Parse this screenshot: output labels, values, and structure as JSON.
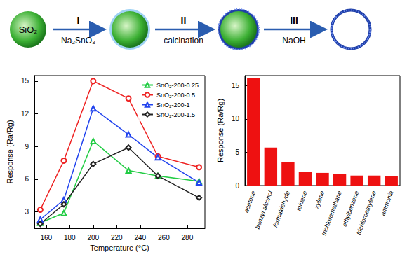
{
  "diagram": {
    "start": "SiO₂",
    "steps": [
      {
        "label": "I",
        "text": "Na₂SnO₃"
      },
      {
        "label": "II",
        "text": "calcination"
      },
      {
        "label": "III",
        "text": "NaOH"
      }
    ]
  },
  "chart_data": [
    {
      "type": "line",
      "x_label": "Temperature (°C)",
      "y_label": "Response (Ra/Rg)",
      "x": [
        155,
        175,
        200,
        230,
        255,
        290
      ],
      "series": [
        {
          "name": "SnO₂-200-0.25",
          "color": "#22cc44",
          "marker": "triangle",
          "values": [
            2.0,
            2.9,
            9.5,
            6.8,
            6.3,
            5.8
          ]
        },
        {
          "name": "SnO₂-200-0.5",
          "color": "#ee2222",
          "marker": "circle",
          "values": [
            3.2,
            7.7,
            15.0,
            13.4,
            8.1,
            7.1
          ]
        },
        {
          "name": "SnO₂-200-1",
          "color": "#2244ee",
          "marker": "triangle",
          "values": [
            2.3,
            4.1,
            12.5,
            10.1,
            8.0,
            5.7
          ]
        },
        {
          "name": "SnO₂-200-1.5",
          "color": "#222222",
          "marker": "diamond",
          "values": [
            1.9,
            3.7,
            7.4,
            8.9,
            6.3,
            4.3
          ]
        }
      ],
      "xlim": [
        150,
        295
      ],
      "xticks": [
        160,
        180,
        200,
        220,
        240,
        260,
        280
      ],
      "ylim": [
        1.5,
        15.5
      ],
      "yticks": [
        3,
        6,
        9,
        12,
        15
      ],
      "grid": false,
      "legend": "upper right"
    },
    {
      "type": "bar",
      "y_label": "Response (Ra/Rg)",
      "categories": [
        "acetone",
        "benzyl alcohol",
        "formaldehyde",
        "toluene",
        "xylene",
        "trichloromethane",
        "ethylbenzene",
        "trichloroethylene",
        "ammonia"
      ],
      "values": [
        16.1,
        5.7,
        3.5,
        2.1,
        1.9,
        1.7,
        1.5,
        1.5,
        1.4
      ],
      "color": "#ee1111",
      "ylim": [
        0,
        16.5
      ],
      "yticks": [
        0,
        5,
        10,
        15
      ],
      "grid": false
    }
  ]
}
